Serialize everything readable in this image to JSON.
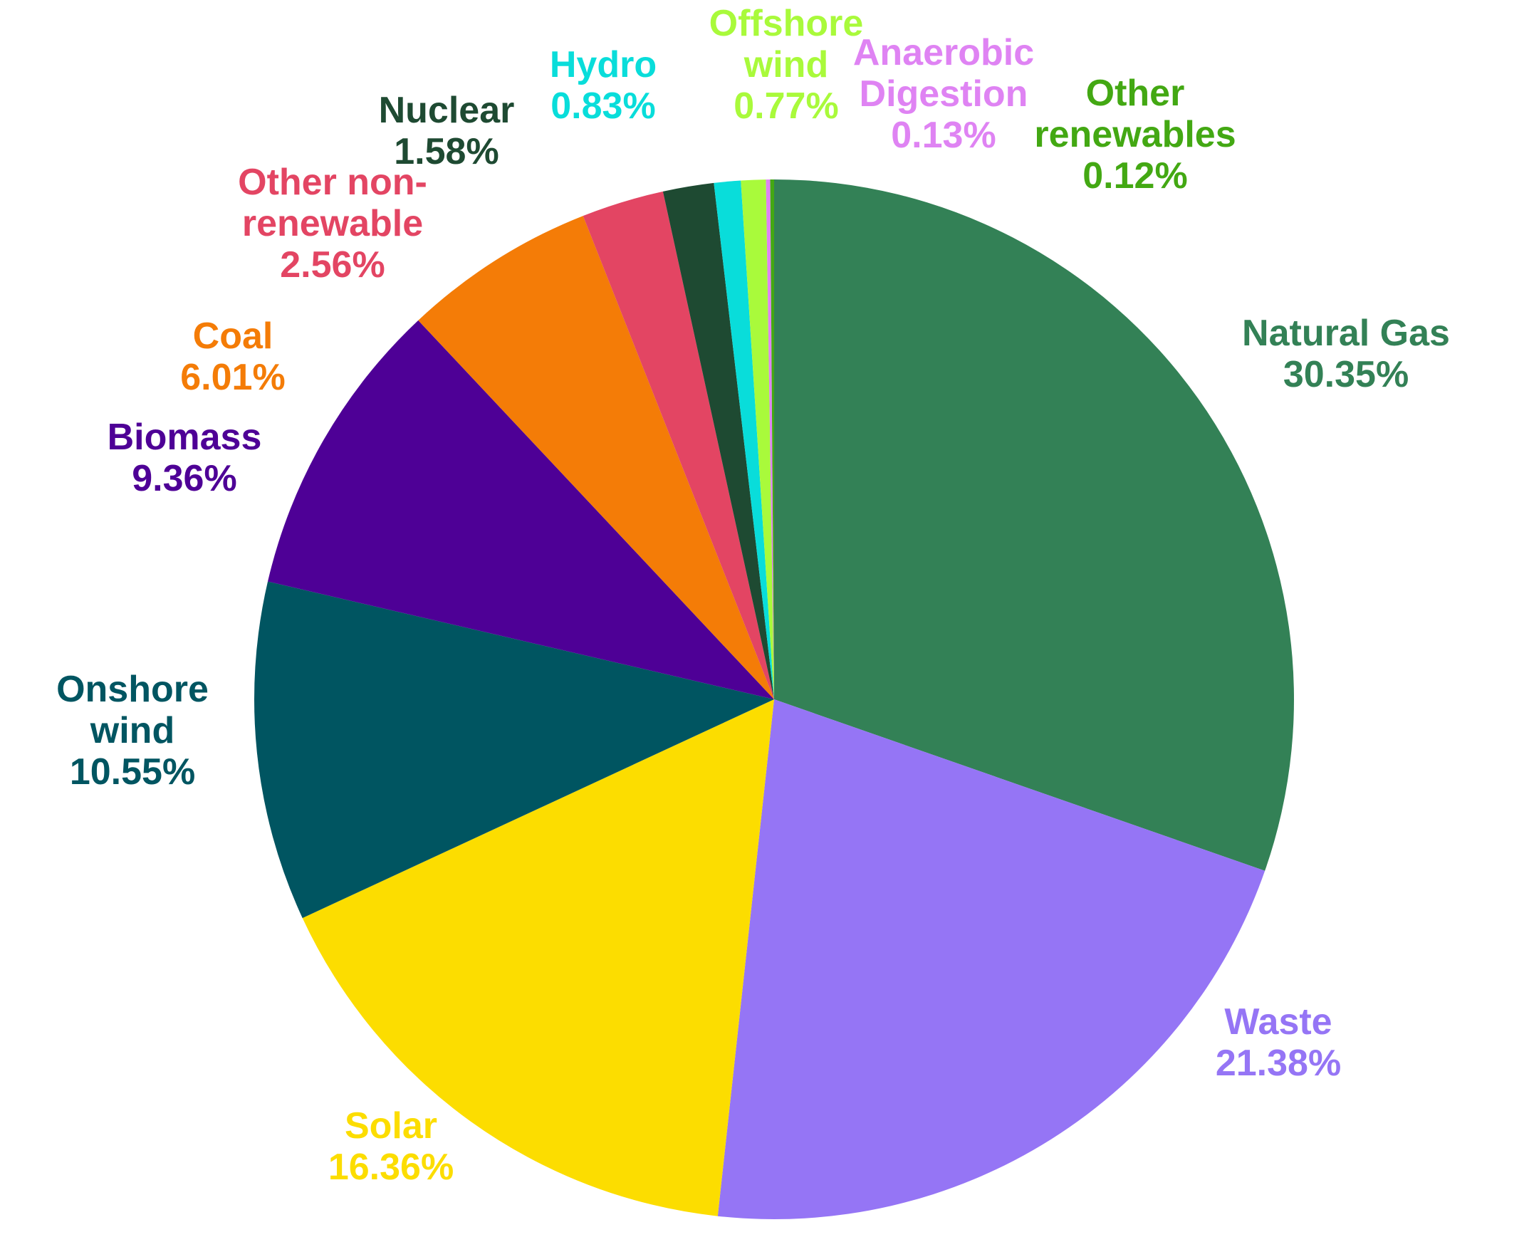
{
  "chart_data": {
    "type": "pie",
    "title": "",
    "start_angle_deg": 0,
    "direction": "clockwise",
    "slices": [
      {
        "label": [
          "Natural Gas"
        ],
        "value": 30.35,
        "value_text": "30.35%",
        "color": "#338156"
      },
      {
        "label": [
          "Waste"
        ],
        "value": 21.38,
        "value_text": "21.38%",
        "color": "#9575F5"
      },
      {
        "label": [
          "Solar"
        ],
        "value": 16.36,
        "value_text": "16.36%",
        "color": "#FCDD00"
      },
      {
        "label": [
          "Onshore",
          "wind"
        ],
        "value": 10.55,
        "value_text": "10.55%",
        "color": "#005561"
      },
      {
        "label": [
          "Biomass"
        ],
        "value": 9.36,
        "value_text": "9.36%",
        "color": "#4E0096"
      },
      {
        "label": [
          "Coal"
        ],
        "value": 6.01,
        "value_text": "6.01%",
        "color": "#F47C07"
      },
      {
        "label": [
          "Other non-",
          "renewable"
        ],
        "value": 2.56,
        "value_text": "2.56%",
        "color": "#E34563"
      },
      {
        "label": [
          "Nuclear"
        ],
        "value": 1.58,
        "value_text": "1.58%",
        "color": "#1E4A32"
      },
      {
        "label": [
          "Hydro"
        ],
        "value": 0.83,
        "value_text": "0.83%",
        "color": "#09DDDA"
      },
      {
        "label": [
          "Offshore",
          "wind"
        ],
        "value": 0.77,
        "value_text": "0.77%",
        "color": "#A9FA3B"
      },
      {
        "label": [
          "Anaerobic",
          "Digestion"
        ],
        "value": 0.13,
        "value_text": "0.13%",
        "color": "#DF83F3"
      },
      {
        "label": [
          "Other",
          "renewables"
        ],
        "value": 0.12,
        "value_text": "0.12%",
        "color": "#43A813"
      }
    ]
  }
}
